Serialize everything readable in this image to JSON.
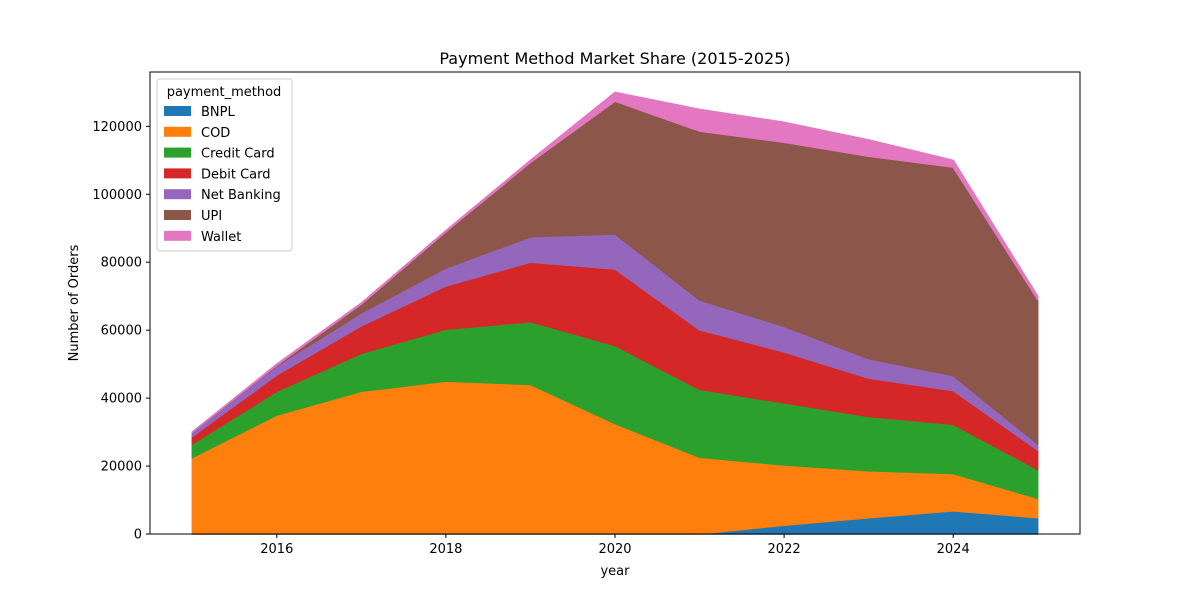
{
  "chart_data": {
    "type": "area",
    "stacked": true,
    "title": "Payment Method Market Share (2015-2025)",
    "xlabel": "year",
    "ylabel": "Number of Orders",
    "x": [
      2015,
      2016,
      2017,
      2018,
      2019,
      2020,
      2021,
      2022,
      2023,
      2024,
      2025
    ],
    "xlim": [
      2014.5,
      2025.5
    ],
    "ylim": [
      0,
      136000
    ],
    "xticks": [
      2016,
      2018,
      2020,
      2022,
      2024
    ],
    "yticks": [
      0,
      20000,
      40000,
      60000,
      80000,
      100000,
      120000
    ],
    "grid": false,
    "legend": {
      "title": "payment_method",
      "placement": "top-left"
    },
    "series": [
      {
        "name": "BNPL",
        "color": "#1f77b4",
        "values": [
          0,
          0,
          0,
          0,
          0,
          0,
          0,
          2600,
          4800,
          6800,
          4800
        ]
      },
      {
        "name": "COD",
        "color": "#ff7f0e",
        "values": [
          22500,
          35000,
          42000,
          45000,
          44000,
          32500,
          22600,
          17700,
          13800,
          11000,
          5700
        ]
      },
      {
        "name": "Credit Card",
        "color": "#2ca02c",
        "values": [
          4000,
          7000,
          11200,
          15300,
          18500,
          23000,
          20000,
          18300,
          16000,
          14500,
          8500
        ]
      },
      {
        "name": "Debit Card",
        "color": "#d62728",
        "values": [
          2200,
          4800,
          8100,
          12700,
          17500,
          22500,
          17500,
          15000,
          11300,
          9900,
          5700
        ]
      },
      {
        "name": "Net Banking",
        "color": "#9467bd",
        "values": [
          1300,
          2700,
          3800,
          5300,
          7500,
          10300,
          8800,
          7500,
          5700,
          4400,
          1800
        ]
      },
      {
        "name": "UPI",
        "color": "#8c564b",
        "values": [
          0,
          200,
          2600,
          10700,
          21900,
          39100,
          49700,
          54200,
          59600,
          61400,
          42500
        ]
      },
      {
        "name": "Wallet",
        "color": "#e377c2",
        "values": [
          0,
          300,
          300,
          300,
          600,
          2600,
          6400,
          5900,
          4800,
          2000,
          1000
        ]
      }
    ]
  }
}
